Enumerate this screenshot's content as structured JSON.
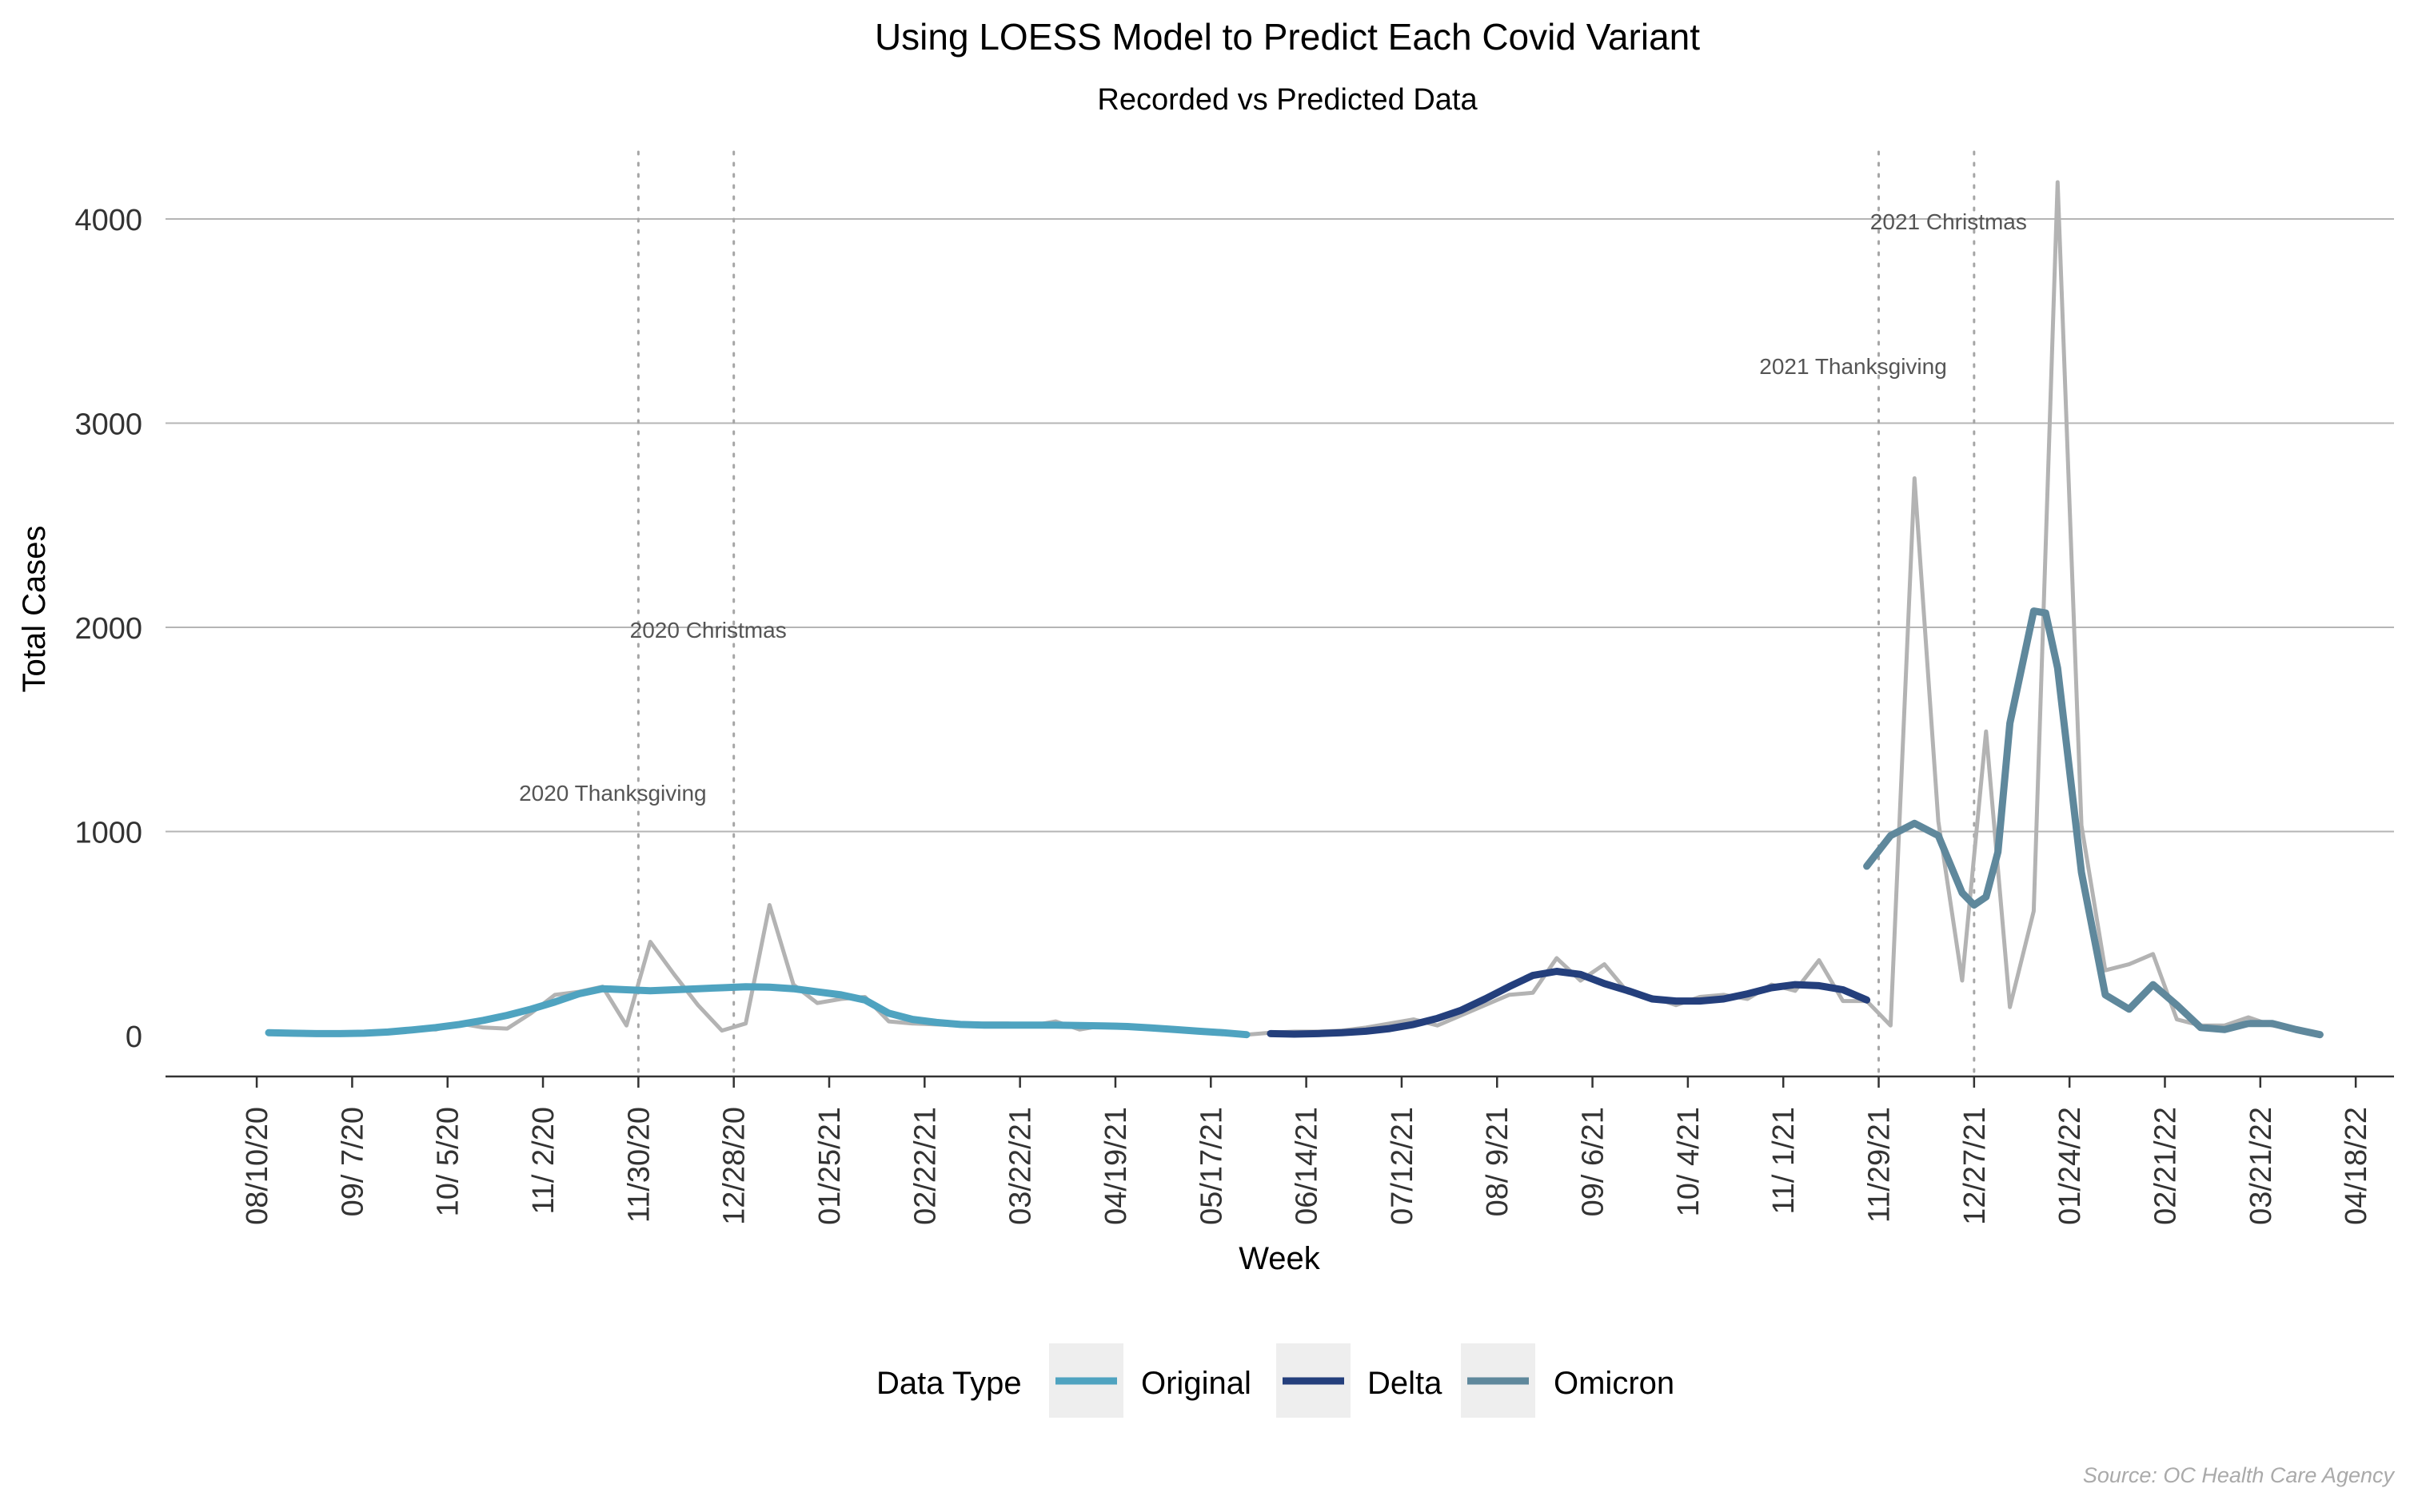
{
  "chart_data": {
    "type": "line",
    "title": "Using LOESS Model to Predict Each Covid Variant",
    "subtitle": "Recorded vs Predicted Data",
    "xlabel": "Week",
    "ylabel": "Total Cases",
    "ylim": [
      -200,
      4350
    ],
    "yticks": [
      0,
      1000,
      2000,
      3000,
      4000
    ],
    "xticks": [
      "08/10/20",
      "09/ 7/20",
      "10/ 5/20",
      "11/ 2/20",
      "11/30/20",
      "12/28/20",
      "01/25/21",
      "02/22/21",
      "03/22/21",
      "04/19/21",
      "05/17/21",
      "06/14/21",
      "07/12/21",
      "08/ 9/21",
      "09/ 6/21",
      "10/ 4/21",
      "11/ 1/21",
      "11/29/21",
      "12/27/21",
      "01/24/22",
      "02/21/22",
      "03/21/22",
      "04/18/22"
    ],
    "grid": "horizontal",
    "colors": {
      "recorded": "#b3b3b3",
      "Original": "#4fa3c0",
      "Delta": "#243f7c",
      "Omicron": "#5f889c",
      "gridline": "#b5b5b5",
      "event_line": "#a6a6a6",
      "annotation": "#555555",
      "source": "#aaaaaa",
      "legend_key_bg": "#eeeeee"
    },
    "events": [
      {
        "label": "2020 Thanksgiving",
        "week": 15.5,
        "label_y": 1150
      },
      {
        "label": "2020 Christmas",
        "week": 19.5,
        "label_y": 1950
      },
      {
        "label": "2021 Thanksgiving",
        "week": 67.5,
        "label_y": 3240
      },
      {
        "label": "2021 Christmas",
        "week": 71.5,
        "label_y": 3950
      }
    ],
    "recorded": {
      "x": [
        0,
        1,
        2,
        3,
        4,
        5,
        6,
        7,
        8,
        9,
        10,
        11,
        12,
        13,
        14,
        15,
        16,
        17,
        18,
        19,
        20,
        21,
        22,
        23,
        24,
        25,
        26,
        27,
        28,
        29,
        30,
        31,
        32,
        33,
        34,
        35,
        36,
        37,
        38,
        39,
        40,
        41,
        42,
        43,
        44,
        45,
        46,
        47,
        48,
        49,
        50,
        51,
        52,
        53,
        54,
        55,
        56,
        57,
        58,
        59,
        60,
        61,
        62,
        63,
        64,
        65,
        66,
        67,
        68,
        69,
        70,
        71,
        72,
        73,
        74,
        75,
        76,
        77,
        78,
        79,
        80,
        81,
        82,
        83,
        84,
        85,
        86
      ],
      "y": [
        20,
        10,
        15,
        10,
        10,
        15,
        35,
        30,
        60,
        40,
        35,
        110,
        200,
        215,
        240,
        50,
        460,
        300,
        150,
        25,
        60,
        640,
        250,
        160,
        180,
        190,
        70,
        60,
        55,
        50,
        60,
        60,
        50,
        70,
        30,
        50,
        50,
        40,
        30,
        20,
        10,
        5,
        15,
        20,
        20,
        25,
        40,
        60,
        80,
        50,
        100,
        150,
        200,
        210,
        380,
        270,
        350,
        210,
        190,
        150,
        190,
        200,
        180,
        250,
        220,
        370,
        170,
        170,
        50,
        2730,
        1050,
        270,
        1490,
        140,
        610,
        4180,
        1030,
        320,
        350,
        400,
        80,
        50,
        50,
        90,
        50,
        30,
        10
      ]
    },
    "series": [
      {
        "name": "Original",
        "x": [
          0,
          1,
          2,
          3,
          4,
          5,
          6,
          7,
          8,
          9,
          10,
          11,
          12,
          13,
          14,
          15,
          16,
          17,
          18,
          19,
          20,
          21,
          22,
          23,
          24,
          25,
          26,
          27,
          28,
          29,
          30,
          31,
          32,
          33,
          34,
          35,
          36,
          37,
          38,
          39,
          40,
          41
        ],
        "y": [
          15,
          12,
          10,
          10,
          12,
          18,
          28,
          40,
          55,
          75,
          100,
          130,
          165,
          205,
          230,
          225,
          220,
          225,
          230,
          235,
          240,
          238,
          230,
          215,
          200,
          175,
          110,
          80,
          65,
          55,
          52,
          52,
          52,
          52,
          50,
          48,
          45,
          38,
          30,
          22,
          15,
          5
        ]
      },
      {
        "name": "Delta",
        "x": [
          42,
          43,
          44,
          45,
          46,
          47,
          48,
          49,
          50,
          51,
          52,
          53,
          54,
          55,
          56,
          57,
          58,
          59,
          60,
          61,
          62,
          63,
          64,
          65,
          66,
          67
        ],
        "y": [
          10,
          8,
          10,
          15,
          22,
          35,
          55,
          85,
          125,
          180,
          240,
          295,
          315,
          300,
          255,
          220,
          180,
          170,
          170,
          180,
          205,
          235,
          250,
          245,
          225,
          175
        ]
      },
      {
        "name": "Omicron",
        "x": [
          67,
          68,
          69,
          70,
          71,
          71.5,
          72,
          72.5,
          73,
          74,
          74.5,
          75,
          76,
          77,
          78,
          79,
          80,
          81,
          82,
          83,
          84,
          85,
          86
        ],
        "y": [
          830,
          980,
          1040,
          980,
          700,
          640,
          680,
          900,
          1530,
          2080,
          2070,
          1800,
          800,
          200,
          130,
          250,
          150,
          40,
          30,
          60,
          60,
          30,
          5
        ]
      }
    ],
    "legend": {
      "title": "Data Type",
      "position": "bottom",
      "items": [
        "Original",
        "Delta",
        "Omicron"
      ]
    },
    "source": "Source: OC Health Care Agency"
  }
}
